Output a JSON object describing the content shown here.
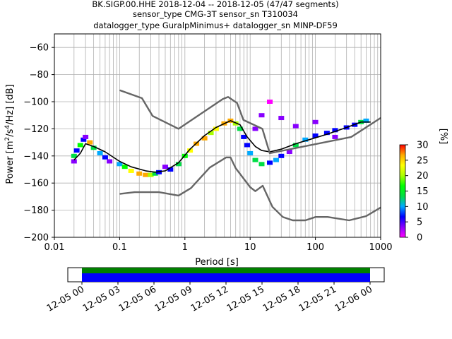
{
  "chart_data": {
    "type": "heatmap",
    "title_lines": [
      "BK.SIGP.00.HHE   2018-12-04 -- 2018-12-05  (47/47 segments)",
      "sensor_type CMG-3T sensor_sn T310034",
      "datalogger_type GuralpMinimus+ datalogger_sn MINP-DF59"
    ],
    "xlabel": "Period [s]",
    "ylabel_parts": [
      "Power [m",
      "2",
      "/s",
      "4",
      "/Hz] [dB]"
    ],
    "xscale": "log",
    "xlim": [
      0.01,
      1000
    ],
    "ylim": [
      -200,
      -50
    ],
    "grid": true,
    "x_tick_labels": [
      "0.01",
      "0.1",
      "1",
      "10",
      "100",
      "1000"
    ],
    "x_tick_values": [
      0.01,
      0.1,
      1,
      10,
      100,
      1000
    ],
    "y_tick_values": [
      -60,
      -80,
      -100,
      -120,
      -140,
      -160,
      -180,
      -200
    ],
    "colorbar": {
      "label": "[%]",
      "ticks": [
        0,
        5,
        10,
        15,
        20,
        25,
        30
      ],
      "range": [
        0,
        30
      ],
      "colors": [
        "#ff00ff",
        "#8800ff",
        "#0000ff",
        "#00aaff",
        "#00dd44",
        "#00ff00",
        "#aaff00",
        "#ffff00",
        "#ffaa00",
        "#ff0000"
      ]
    },
    "series": [
      {
        "name": "mean",
        "color": "#000000",
        "points": [
          [
            0.02,
            -143
          ],
          [
            0.025,
            -138
          ],
          [
            0.03,
            -131
          ],
          [
            0.04,
            -133
          ],
          [
            0.06,
            -137
          ],
          [
            0.1,
            -144
          ],
          [
            0.15,
            -148
          ],
          [
            0.25,
            -151
          ],
          [
            0.35,
            -152
          ],
          [
            0.5,
            -151
          ],
          [
            0.8,
            -145
          ],
          [
            1.2,
            -135
          ],
          [
            2,
            -125
          ],
          [
            3,
            -119
          ],
          [
            5,
            -114
          ],
          [
            7,
            -117
          ],
          [
            9,
            -126
          ],
          [
            12,
            -133
          ],
          [
            15,
            -136
          ],
          [
            20,
            -137
          ],
          [
            30,
            -135
          ],
          [
            50,
            -131
          ],
          [
            80,
            -128
          ],
          [
            150,
            -124
          ],
          [
            300,
            -119
          ],
          [
            500,
            -115
          ],
          [
            700,
            -115
          ]
        ]
      },
      {
        "name": "nlnm_nhnm_high",
        "color": "#666666",
        "points": [
          [
            0.1,
            -91.5
          ],
          [
            0.22,
            -97.4
          ],
          [
            0.32,
            -110.5
          ],
          [
            0.8,
            -120
          ],
          [
            3.8,
            -98
          ],
          [
            4.6,
            -96.5
          ],
          [
            6.3,
            -101
          ],
          [
            7.9,
            -113.5
          ],
          [
            15.4,
            -120
          ],
          [
            20,
            -138
          ],
          [
            354.8,
            -126
          ],
          [
            1000,
            -112
          ]
        ]
      },
      {
        "name": "nlnm_nhnm_low",
        "color": "#666666",
        "points": [
          [
            0.1,
            -168
          ],
          [
            0.17,
            -166.7
          ],
          [
            0.4,
            -166.7
          ],
          [
            0.8,
            -169.2
          ],
          [
            1.24,
            -163.7
          ],
          [
            2.4,
            -148.6
          ],
          [
            4.3,
            -141.1
          ],
          [
            5,
            -141.1
          ],
          [
            6,
            -149
          ],
          [
            10,
            -163
          ],
          [
            12,
            -166
          ],
          [
            15.6,
            -162
          ],
          [
            21.9,
            -177.5
          ],
          [
            31.6,
            -185
          ],
          [
            45,
            -187.5
          ],
          [
            70,
            -187.5
          ],
          [
            101,
            -185
          ],
          [
            154,
            -185
          ],
          [
            328,
            -187.5
          ],
          [
            600,
            -184.4
          ],
          [
            1000,
            -178
          ]
        ]
      }
    ],
    "heat_cells": [
      [
        0.02,
        -144,
        2
      ],
      [
        0.02,
        -140,
        12
      ],
      [
        0.022,
        -136,
        6
      ],
      [
        0.025,
        -132,
        18
      ],
      [
        0.028,
        -128,
        8
      ],
      [
        0.03,
        -126,
        3
      ],
      [
        0.035,
        -130,
        25
      ],
      [
        0.04,
        -134,
        14
      ],
      [
        0.05,
        -138,
        9
      ],
      [
        0.06,
        -141,
        5
      ],
      [
        0.07,
        -144,
        3
      ],
      [
        0.1,
        -146,
        10
      ],
      [
        0.12,
        -148,
        18
      ],
      [
        0.15,
        -151,
        22
      ],
      [
        0.2,
        -153,
        26
      ],
      [
        0.25,
        -154,
        28
      ],
      [
        0.3,
        -154,
        20
      ],
      [
        0.35,
        -153,
        12
      ],
      [
        0.4,
        -152,
        6
      ],
      [
        0.5,
        -148,
        3
      ],
      [
        0.6,
        -150,
        8
      ],
      [
        0.8,
        -146,
        14
      ],
      [
        1,
        -140,
        18
      ],
      [
        1.2,
        -136,
        24
      ],
      [
        1.5,
        -131,
        27
      ],
      [
        2,
        -127,
        25
      ],
      [
        2.5,
        -123,
        20
      ],
      [
        3,
        -120,
        22
      ],
      [
        4,
        -116,
        26
      ],
      [
        5,
        -114,
        28
      ],
      [
        6,
        -116,
        20
      ],
      [
        7,
        -120,
        12
      ],
      [
        8,
        -126,
        8
      ],
      [
        9,
        -132,
        6
      ],
      [
        10,
        -138,
        10
      ],
      [
        12,
        -143,
        14
      ],
      [
        15,
        -146,
        12
      ],
      [
        20,
        -145,
        8
      ],
      [
        25,
        -143,
        10
      ],
      [
        30,
        -140,
        6
      ],
      [
        40,
        -137,
        4
      ],
      [
        12,
        -120,
        2
      ],
      [
        15,
        -110,
        2
      ],
      [
        20,
        -100,
        1
      ],
      [
        30,
        -112,
        2
      ],
      [
        50,
        -132,
        12
      ],
      [
        70,
        -128,
        10
      ],
      [
        100,
        -125,
        8
      ],
      [
        150,
        -123,
        6
      ],
      [
        200,
        -121,
        5
      ],
      [
        300,
        -119,
        6
      ],
      [
        400,
        -117,
        8
      ],
      [
        500,
        -115,
        14
      ],
      [
        600,
        -114,
        10
      ],
      [
        50,
        -118,
        2
      ],
      [
        100,
        -115,
        2
      ],
      [
        200,
        -126,
        2
      ]
    ],
    "time_axis": {
      "tick_labels": [
        "12-05 00",
        "12-05 03",
        "12-05 06",
        "12-05 09",
        "12-05 12",
        "12-05 15",
        "12-05 18",
        "12-05 21",
        "12-06 00"
      ],
      "coverage_color": "#008000",
      "data_color": "#0000ff"
    }
  }
}
